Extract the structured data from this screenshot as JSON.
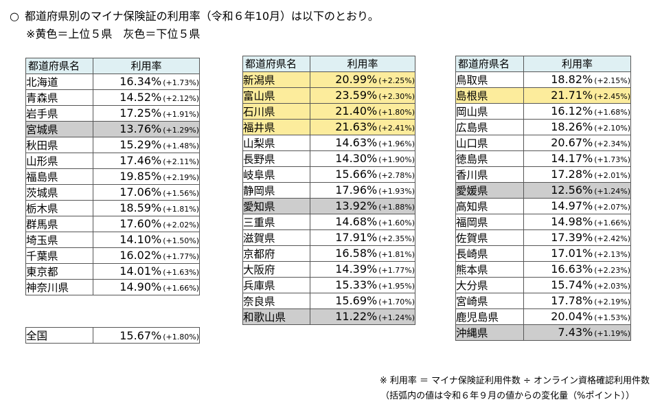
{
  "header": {
    "bullet": "○",
    "title": "都道府県別のマイナ保険証の利用率（令和６年10月）は以下のとおり。",
    "legend": "※黄色＝上位５県　灰色＝下位５県"
  },
  "columns": {
    "name": "都道府県名",
    "rate": "利用率"
  },
  "tables": [
    {
      "rows": [
        {
          "name": "北海道",
          "rate": "16.34%",
          "change": "(+1.73%)",
          "hl": ""
        },
        {
          "name": "青森県",
          "rate": "14.52%",
          "change": "(+2.12%)",
          "hl": ""
        },
        {
          "name": "岩手県",
          "rate": "17.25%",
          "change": "(+1.91%)",
          "hl": ""
        },
        {
          "name": "宮城県",
          "rate": "13.76%",
          "change": "(+1.29%)",
          "hl": "bottom"
        },
        {
          "name": "秋田県",
          "rate": "15.29%",
          "change": "(+1.48%)",
          "hl": ""
        },
        {
          "name": "山形県",
          "rate": "17.46%",
          "change": "(+2.11%)",
          "hl": ""
        },
        {
          "name": "福島県",
          "rate": "19.85%",
          "change": "(+2.19%)",
          "hl": ""
        },
        {
          "name": "茨城県",
          "rate": "17.06%",
          "change": "(+1.56%)",
          "hl": ""
        },
        {
          "name": "栃木県",
          "rate": "18.59%",
          "change": "(+1.81%)",
          "hl": ""
        },
        {
          "name": "群馬県",
          "rate": "17.60%",
          "change": "(+2.02%)",
          "hl": ""
        },
        {
          "name": "埼玉県",
          "rate": "14.10%",
          "change": "(+1.50%)",
          "hl": ""
        },
        {
          "name": "千葉県",
          "rate": "16.02%",
          "change": "(+1.77%)",
          "hl": ""
        },
        {
          "name": "東京都",
          "rate": "14.01%",
          "change": "(+1.63%)",
          "hl": ""
        },
        {
          "name": "神奈川県",
          "rate": "14.90%",
          "change": "(+1.66%)",
          "hl": ""
        }
      ]
    },
    {
      "rows": [
        {
          "name": "新潟県",
          "rate": "20.99%",
          "change": "(+2.25%)",
          "hl": "top"
        },
        {
          "name": "富山県",
          "rate": "23.59%",
          "change": "(+2.30%)",
          "hl": "top"
        },
        {
          "name": "石川県",
          "rate": "21.40%",
          "change": "(+1.80%)",
          "hl": "top"
        },
        {
          "name": "福井県",
          "rate": "21.63%",
          "change": "(+2.41%)",
          "hl": "top"
        },
        {
          "name": "山梨県",
          "rate": "14.63%",
          "change": "(+1.96%)",
          "hl": ""
        },
        {
          "name": "長野県",
          "rate": "14.30%",
          "change": "(+1.90%)",
          "hl": ""
        },
        {
          "name": "岐阜県",
          "rate": "15.66%",
          "change": "(+2.78%)",
          "hl": ""
        },
        {
          "name": "静岡県",
          "rate": "17.96%",
          "change": "(+1.93%)",
          "hl": ""
        },
        {
          "name": "愛知県",
          "rate": "13.92%",
          "change": "(+1.88%)",
          "hl": "bottom"
        },
        {
          "name": "三重県",
          "rate": "14.68%",
          "change": "(+1.60%)",
          "hl": ""
        },
        {
          "name": "滋賀県",
          "rate": "17.91%",
          "change": "(+2.35%)",
          "hl": ""
        },
        {
          "name": "京都府",
          "rate": "16.58%",
          "change": "(+1.81%)",
          "hl": ""
        },
        {
          "name": "大阪府",
          "rate": "14.39%",
          "change": "(+1.77%)",
          "hl": ""
        },
        {
          "name": "兵庫県",
          "rate": "15.33%",
          "change": "(+1.95%)",
          "hl": ""
        },
        {
          "name": "奈良県",
          "rate": "15.69%",
          "change": "(+1.70%)",
          "hl": ""
        },
        {
          "name": "和歌山県",
          "rate": "11.22%",
          "change": "(+1.24%)",
          "hl": "bottom"
        }
      ]
    },
    {
      "rows": [
        {
          "name": "鳥取県",
          "rate": "18.82%",
          "change": "(+2.15%)",
          "hl": ""
        },
        {
          "name": "島根県",
          "rate": "21.71%",
          "change": "(+2.45%)",
          "hl": "top"
        },
        {
          "name": "岡山県",
          "rate": "16.12%",
          "change": "(+1.68%)",
          "hl": ""
        },
        {
          "name": "広島県",
          "rate": "18.26%",
          "change": "(+2.10%)",
          "hl": ""
        },
        {
          "name": "山口県",
          "rate": "20.67%",
          "change": "(+2.34%)",
          "hl": ""
        },
        {
          "name": "徳島県",
          "rate": "14.17%",
          "change": "(+1.73%)",
          "hl": ""
        },
        {
          "name": "香川県",
          "rate": "17.28%",
          "change": "(+2.01%)",
          "hl": ""
        },
        {
          "name": "愛媛県",
          "rate": "12.56%",
          "change": "(+1.24%)",
          "hl": "bottom"
        },
        {
          "name": "高知県",
          "rate": "14.97%",
          "change": "(+2.07%)",
          "hl": ""
        },
        {
          "name": "福岡県",
          "rate": "14.98%",
          "change": "(+1.66%)",
          "hl": ""
        },
        {
          "name": "佐賀県",
          "rate": "17.39%",
          "change": "(+2.42%)",
          "hl": ""
        },
        {
          "name": "長崎県",
          "rate": "17.01%",
          "change": "(+2.13%)",
          "hl": ""
        },
        {
          "name": "熊本県",
          "rate": "16.63%",
          "change": "(+2.23%)",
          "hl": ""
        },
        {
          "name": "大分県",
          "rate": "15.74%",
          "change": "(+2.03%)",
          "hl": ""
        },
        {
          "name": "宮崎県",
          "rate": "17.78%",
          "change": "(+2.19%)",
          "hl": ""
        },
        {
          "name": "鹿児島県",
          "rate": "20.04%",
          "change": "(+1.53%)",
          "hl": ""
        },
        {
          "name": "沖縄県",
          "rate": "7.43%",
          "change": "(+1.19%)",
          "hl": "bottom"
        }
      ]
    }
  ],
  "national": {
    "name": "全国",
    "rate": "15.67%",
    "change": "(+1.80%)"
  },
  "notes": {
    "line1": "※ 利用率 ＝ マイナ保険証利用件数 ÷ オンライン資格確認利用件数",
    "line2": "（括弧内の値は令和６年９月の値からの変化量（%ポイント））"
  },
  "colors": {
    "top_highlight": "#fcec9c",
    "bottom_highlight": "#cdcdcd",
    "header_bg": "#dff0f3"
  }
}
